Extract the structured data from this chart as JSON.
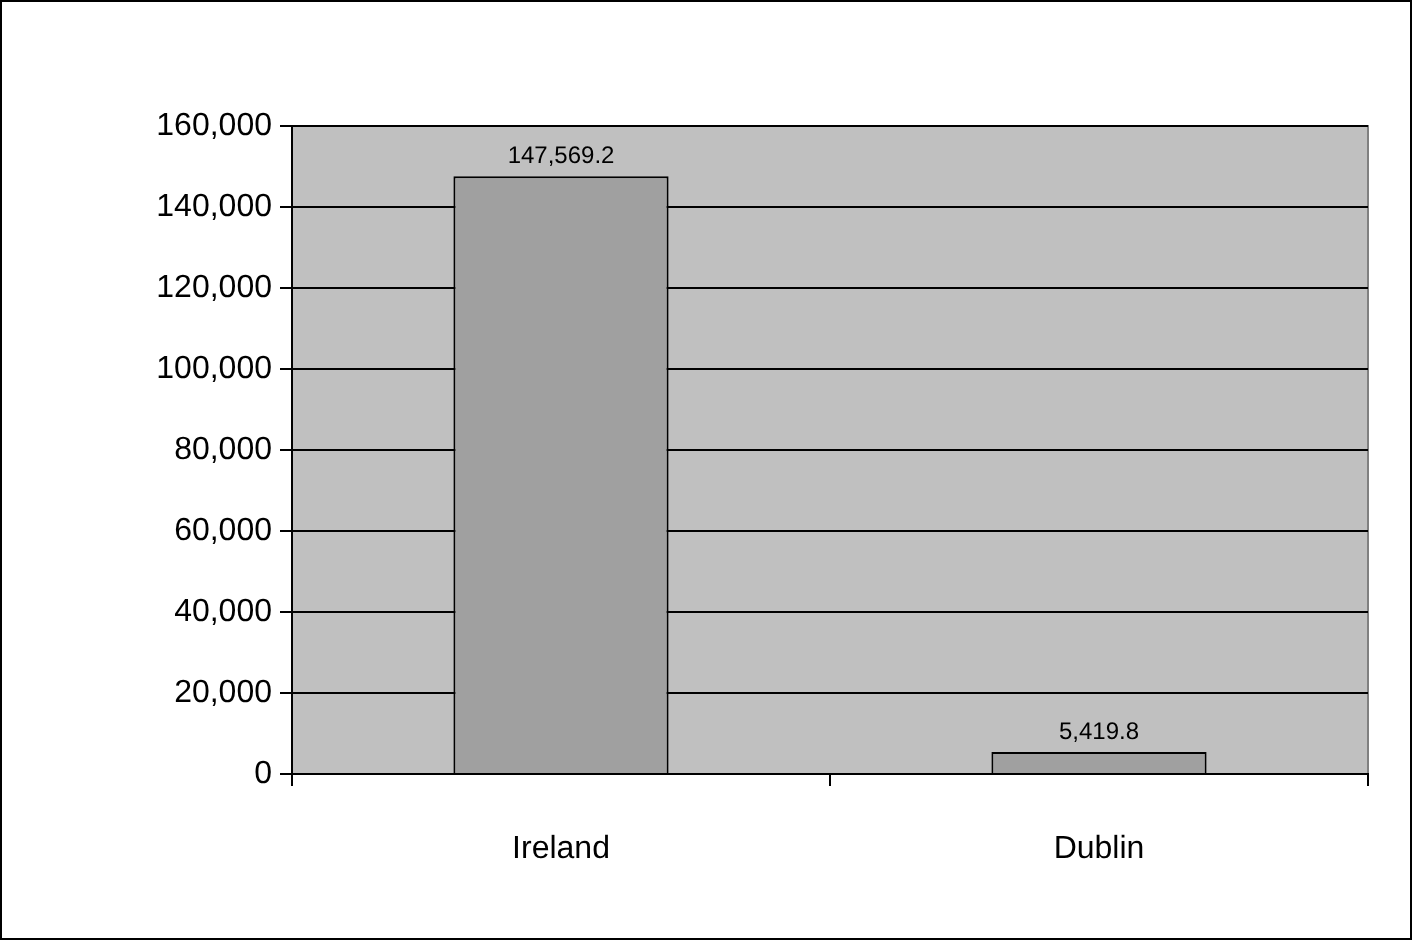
{
  "chart_data": {
    "type": "bar",
    "categories": [
      "Ireland",
      "Dublin"
    ],
    "values": [
      147569.2,
      5419.8
    ],
    "color": "#a0a0a0",
    "value_labels": [
      "147,569.2",
      "5,419.8"
    ],
    "ylim": [
      0,
      160000
    ],
    "yticks": [
      {
        "value": 0,
        "label": "0"
      },
      {
        "value": 20000,
        "label": "20,000"
      },
      {
        "value": 40000,
        "label": "40,000"
      },
      {
        "value": 60000,
        "label": "60,000"
      },
      {
        "value": 80000,
        "label": "80,000"
      },
      {
        "value": 100000,
        "label": "100,000"
      },
      {
        "value": 120000,
        "label": "120,000"
      },
      {
        "value": 140000,
        "label": "140,000"
      },
      {
        "value": 160000,
        "label": "160,000"
      }
    ],
    "grid": "y",
    "legend": false
  }
}
